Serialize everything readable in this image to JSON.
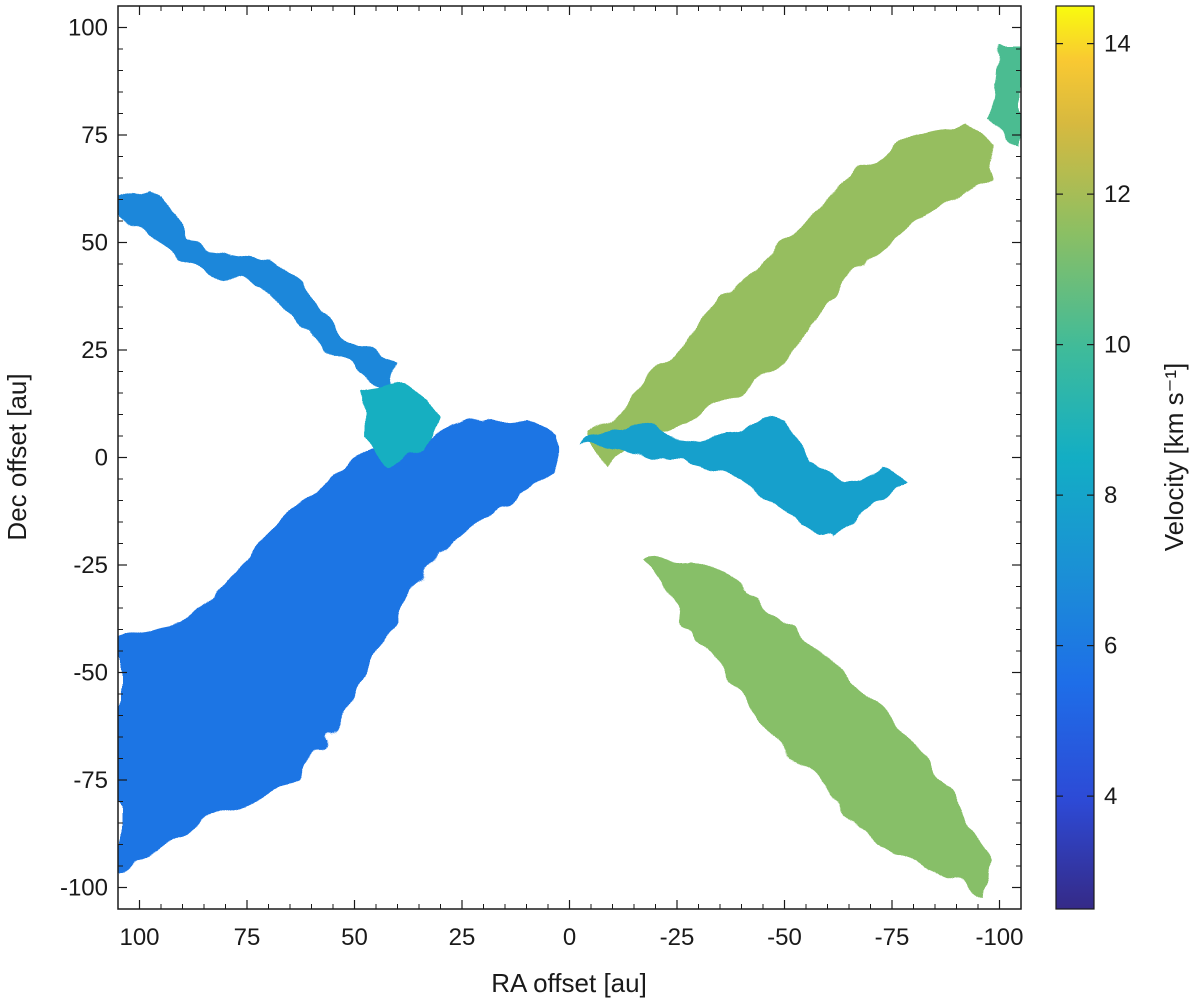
{
  "chart_data": {
    "type": "heatmap",
    "title": "",
    "xlabel": "RA offset [au]",
    "ylabel": "Dec offset [au]",
    "colorbar_label": "Velocity [km s⁻¹]",
    "xlim": [
      105,
      -105
    ],
    "ylim": [
      -105,
      105
    ],
    "x_ticks": [
      100,
      75,
      50,
      25,
      0,
      -25,
      -50,
      -75,
      -100
    ],
    "x_tick_labels": [
      "100",
      "75",
      "50",
      "25",
      "0",
      "-25",
      "-50",
      "-75",
      "-100"
    ],
    "y_ticks": [
      100,
      75,
      50,
      25,
      0,
      -25,
      -50,
      -75,
      -100
    ],
    "y_tick_labels": [
      "100",
      "75",
      "50",
      "25",
      "0",
      "-25",
      "-50",
      "-75",
      "-100"
    ],
    "colorbar_range": [
      2.5,
      14.5
    ],
    "colorbar_ticks": [
      4,
      6,
      8,
      10,
      12,
      14
    ],
    "colorbar_tick_labels": [
      "4",
      "6",
      "8",
      "10",
      "12",
      "14"
    ],
    "colormap": "parula",
    "grid": false,
    "regions": [
      {
        "name": "southeast-outflow-lobe",
        "approx_velocity": 5.8,
        "polygon": [
          [
            105,
            -96
          ],
          [
            96,
            -93
          ],
          [
            86,
            -85
          ],
          [
            74,
            -80
          ],
          [
            64,
            -75
          ],
          [
            55,
            -64
          ],
          [
            47,
            -50
          ],
          [
            40,
            -36
          ],
          [
            30,
            -22
          ],
          [
            20,
            -14
          ],
          [
            10,
            -8
          ],
          [
            3,
            -3
          ],
          [
            3,
            5
          ],
          [
            10,
            10
          ],
          [
            20,
            9
          ],
          [
            32,
            5
          ],
          [
            44,
            2
          ],
          [
            52,
            -2
          ],
          [
            60,
            -8
          ],
          [
            70,
            -18
          ],
          [
            80,
            -30
          ],
          [
            90,
            -38
          ],
          [
            100,
            -40
          ],
          [
            105,
            -42
          ]
        ]
      },
      {
        "name": "northeast-filament-upper",
        "approx_velocity": 6.6,
        "polygon": [
          [
            105,
            60
          ],
          [
            97,
            63
          ],
          [
            92,
            57
          ],
          [
            88,
            50
          ],
          [
            80,
            48
          ],
          [
            70,
            46
          ],
          [
            62,
            40
          ],
          [
            58,
            33
          ],
          [
            52,
            28
          ],
          [
            45,
            24
          ],
          [
            40,
            22
          ],
          [
            42,
            15
          ],
          [
            48,
            20
          ],
          [
            55,
            25
          ],
          [
            60,
            28
          ],
          [
            66,
            34
          ],
          [
            72,
            40
          ],
          [
            82,
            43
          ],
          [
            90,
            46
          ],
          [
            98,
            52
          ],
          [
            105,
            55
          ]
        ]
      },
      {
        "name": "northeast-blob-inner",
        "approx_velocity": 8.6,
        "polygon": [
          [
            48,
            16
          ],
          [
            40,
            18
          ],
          [
            34,
            14
          ],
          [
            30,
            8
          ],
          [
            34,
            2
          ],
          [
            42,
            -2
          ],
          [
            48,
            4
          ]
        ]
      },
      {
        "name": "northwest-outflow-lobe",
        "approx_velocity": 11.7,
        "polygon": [
          [
            -5,
            5
          ],
          [
            -12,
            12
          ],
          [
            -20,
            20
          ],
          [
            -28,
            28
          ],
          [
            -35,
            36
          ],
          [
            -42,
            42
          ],
          [
            -50,
            50
          ],
          [
            -58,
            58
          ],
          [
            -66,
            66
          ],
          [
            -74,
            72
          ],
          [
            -84,
            76
          ],
          [
            -92,
            78
          ],
          [
            -100,
            72
          ],
          [
            -98,
            64
          ],
          [
            -90,
            60
          ],
          [
            -80,
            54
          ],
          [
            -72,
            48
          ],
          [
            -64,
            40
          ],
          [
            -58,
            33
          ],
          [
            -52,
            25
          ],
          [
            -44,
            18
          ],
          [
            -35,
            12
          ],
          [
            -26,
            7
          ],
          [
            -15,
            4
          ],
          [
            -8,
            -2
          ]
        ]
      },
      {
        "name": "northwest-edge-blob",
        "approx_velocity": 10.2,
        "polygon": [
          [
            -100,
            95
          ],
          [
            -105,
            95
          ],
          [
            -105,
            72
          ],
          [
            -98,
            78
          ]
        ]
      },
      {
        "name": "west-filament",
        "approx_velocity": 7.8,
        "polygon": [
          [
            -3,
            2
          ],
          [
            -10,
            3
          ],
          [
            -20,
            0
          ],
          [
            -30,
            -2
          ],
          [
            -40,
            -5
          ],
          [
            -48,
            -12
          ],
          [
            -56,
            -16
          ],
          [
            -62,
            -18
          ],
          [
            -70,
            -12
          ],
          [
            -78,
            -5
          ],
          [
            -72,
            -2
          ],
          [
            -64,
            -6
          ],
          [
            -56,
            -2
          ],
          [
            -50,
            8
          ],
          [
            -44,
            10
          ],
          [
            -38,
            6
          ],
          [
            -30,
            4
          ],
          [
            -20,
            6
          ],
          [
            -10,
            8
          ]
        ]
      },
      {
        "name": "southwest-outflow-lobe",
        "approx_velocity": 11.4,
        "polygon": [
          [
            -18,
            -24
          ],
          [
            -24,
            -34
          ],
          [
            -32,
            -46
          ],
          [
            -40,
            -56
          ],
          [
            -48,
            -66
          ],
          [
            -56,
            -74
          ],
          [
            -64,
            -82
          ],
          [
            -72,
            -90
          ],
          [
            -80,
            -94
          ],
          [
            -90,
            -98
          ],
          [
            -97,
            -102
          ],
          [
            -98,
            -94
          ],
          [
            -92,
            -84
          ],
          [
            -84,
            -72
          ],
          [
            -76,
            -62
          ],
          [
            -68,
            -54
          ],
          [
            -60,
            -46
          ],
          [
            -52,
            -40
          ],
          [
            -44,
            -34
          ],
          [
            -36,
            -28
          ],
          [
            -28,
            -23
          ]
        ]
      }
    ]
  }
}
